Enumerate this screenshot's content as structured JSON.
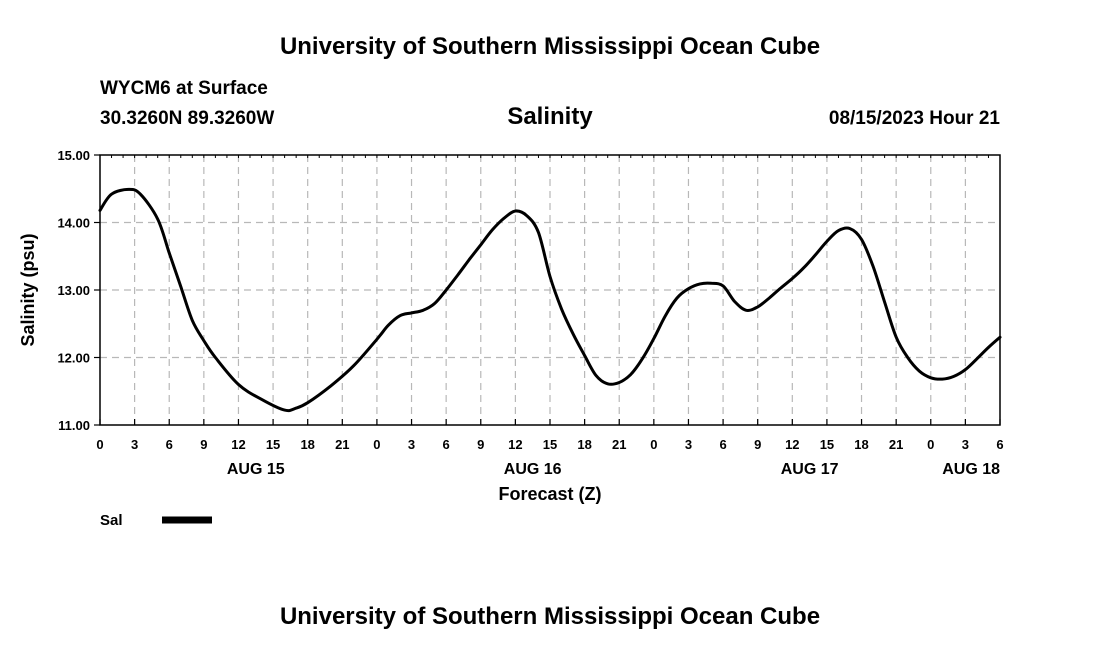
{
  "header": {
    "title": "University of Southern Mississippi Ocean Cube",
    "station": "WYCM6 at Surface",
    "coords": "30.3260N  89.3260W",
    "variable": "Salinity",
    "datetime": "08/15/2023 Hour 21"
  },
  "footer": {
    "title": "University of Southern Mississippi Ocean Cube"
  },
  "legend": {
    "label": "Sal"
  },
  "chart_data": {
    "type": "line",
    "title": "Salinity",
    "xlabel": "Forecast (Z)",
    "ylabel": "Salinity (psu)",
    "ylim": [
      11.0,
      15.0
    ],
    "xlim": [
      0,
      78
    ],
    "yticks": [
      11.0,
      12.0,
      13.0,
      14.0,
      15.0
    ],
    "ytick_labels": [
      "11.00",
      "12.00",
      "13.00",
      "14.00",
      "15.00"
    ],
    "xticks": [
      0,
      3,
      6,
      9,
      12,
      15,
      18,
      21,
      24,
      27,
      30,
      33,
      36,
      39,
      42,
      45,
      48,
      51,
      54,
      57,
      60,
      63,
      66,
      69,
      72,
      75,
      78
    ],
    "xtick_labels": [
      "0",
      "3",
      "6",
      "9",
      "12",
      "15",
      "18",
      "21",
      "0",
      "3",
      "6",
      "9",
      "12",
      "15",
      "18",
      "21",
      "0",
      "3",
      "6",
      "9",
      "12",
      "15",
      "18",
      "21",
      "0",
      "3",
      "6"
    ],
    "day_labels": [
      {
        "x": 13.5,
        "label": "AUG 15"
      },
      {
        "x": 37.5,
        "label": "AUG 16"
      },
      {
        "x": 61.5,
        "label": "AUG 17"
      },
      {
        "x": 75.5,
        "label": "AUG 18"
      }
    ],
    "grid": true,
    "legend": "bottom-left",
    "series": [
      {
        "name": "Sal",
        "color": "#000000",
        "x": [
          0,
          1,
          2.5,
          3.5,
          5,
          6,
          7,
          8,
          9,
          10,
          12,
          14,
          16,
          17,
          18,
          20,
          22,
          24,
          25,
          26,
          27,
          28,
          29,
          30,
          31,
          32,
          33,
          34,
          35,
          36,
          37,
          38,
          39,
          40,
          41,
          42,
          43,
          44,
          45,
          46,
          47,
          48,
          49,
          50,
          51,
          52,
          53,
          54,
          55,
          56,
          57,
          58,
          59,
          60,
          61,
          62,
          63,
          64,
          65,
          66,
          67,
          68,
          69,
          70,
          71,
          72,
          73,
          74,
          75,
          76,
          77,
          78
        ],
        "values": [
          14.18,
          14.42,
          14.49,
          14.42,
          14.05,
          13.55,
          13.05,
          12.55,
          12.25,
          12.0,
          11.6,
          11.38,
          11.22,
          11.25,
          11.33,
          11.58,
          11.88,
          12.27,
          12.48,
          12.62,
          12.66,
          12.7,
          12.8,
          13.0,
          13.22,
          13.45,
          13.67,
          13.89,
          14.06,
          14.17,
          14.1,
          13.85,
          13.2,
          12.72,
          12.35,
          12.03,
          11.73,
          11.61,
          11.63,
          11.75,
          11.98,
          12.28,
          12.62,
          12.88,
          13.02,
          13.09,
          13.1,
          13.06,
          12.83,
          12.7,
          12.75,
          12.88,
          13.03,
          13.17,
          13.33,
          13.52,
          13.72,
          13.88,
          13.91,
          13.75,
          13.35,
          12.82,
          12.3,
          12.0,
          11.8,
          11.7,
          11.68,
          11.72,
          11.82,
          11.98,
          12.15,
          12.3
        ]
      }
    ]
  }
}
